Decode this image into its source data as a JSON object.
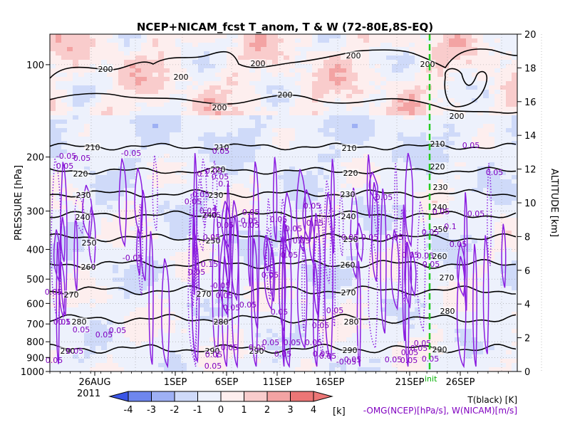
{
  "chart_data": {
    "type": "heatmap",
    "title": "NCEP+NICAM_fcst T_anom, T & W  (72-80E,8S-EQ)",
    "ylabel_left": "PRESSURE [hPa]",
    "ylabel_right": "ALTITUDE [km]",
    "pressure_ticks": [
      "100",
      "200",
      "300",
      "400",
      "500",
      "600",
      "700",
      "800",
      "900",
      "1000"
    ],
    "altitude_ticks": [
      "0",
      "2",
      "4",
      "6",
      "8",
      "10",
      "12",
      "14",
      "16",
      "18",
      "20"
    ],
    "x_ticks": [
      "26AUG",
      "1SEP",
      "6SEP",
      "11SEP",
      "16SEP",
      "21SEP",
      "26SEP"
    ],
    "year_label": "2011",
    "init_label": "init",
    "colorbar": {
      "ticks": [
        "-4",
        "-3",
        "-2",
        "-1",
        "0",
        "1",
        "2",
        "3",
        "4"
      ],
      "unit": "[k]",
      "colors": [
        "#3a55e6",
        "#6e86ee",
        "#9eb0f4",
        "#cfdaf9",
        "#edf1fc",
        "#fdeeee",
        "#f9cccc",
        "#f3a3a3",
        "#ec7676"
      ]
    },
    "legend_black": "T(black) [K]",
    "legend_purple": "-OMG(NCEP)[hPa/s], W(NICAM)[m/s]",
    "temperature_labels": [
      "200",
      "200",
      "200",
      "200",
      "200",
      "200",
      "200",
      "200",
      "210",
      "210",
      "210",
      "210",
      "220",
      "220",
      "220",
      "220",
      "230",
      "230",
      "230",
      "230",
      "240",
      "240",
      "240",
      "240",
      "250",
      "250",
      "250",
      "250",
      "260",
      "260",
      "260",
      "270",
      "270",
      "270",
      "270",
      "280",
      "280",
      "280",
      "280",
      "290",
      "290",
      "290",
      "290",
      "290"
    ],
    "omega_labels": [
      "-0.05",
      "0.05",
      "-0.05",
      "0.05",
      "0.05",
      "0.05",
      "0.05",
      "0.1",
      "0.05",
      "0.05",
      "-0.05",
      "0.05",
      "0.05",
      "0.05",
      "0.05",
      "0.15",
      "-0.05",
      "0.05",
      "0.05",
      "-0.05",
      "0.05",
      "0.05",
      "0.05",
      "0.05",
      "0.05",
      "0.05",
      "0.05",
      "0.05",
      "0.05",
      "0.05",
      "0.05",
      "0.1",
      "0.05",
      "0.05",
      "0.05",
      "0.05",
      "0.05",
      "0.05",
      "0.15",
      "0.05",
      "0.05",
      "-0.05",
      "0.05",
      "0.05",
      "0.05",
      "0.05",
      "0.05",
      "0.05",
      "0.05",
      "0.05",
      "0.05",
      "0.05",
      "0.05",
      "0.05",
      "0.05",
      "0.05",
      "0.05",
      "-0.05",
      "0.05",
      "0.05",
      "0.05",
      "0.05",
      "0.05",
      "0.05",
      "0.05",
      "0.05",
      "0.05",
      "0.05",
      "0.05",
      "0.05",
      "0.05",
      "0.1",
      "0.05",
      "0.05",
      "0.1"
    ]
  }
}
